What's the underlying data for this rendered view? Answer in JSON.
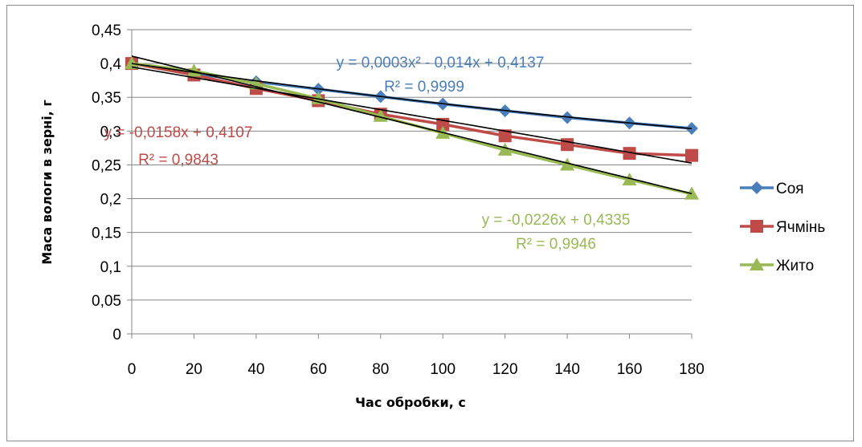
{
  "chart_data": {
    "type": "line",
    "xlabel": "Час обробки, с",
    "ylabel": "Маса вологи в зерні, г",
    "x": [
      0,
      20,
      40,
      60,
      80,
      100,
      120,
      140,
      160,
      180
    ],
    "xlim": [
      0,
      180
    ],
    "ylim": [
      0,
      0.45
    ],
    "x_ticks": [
      "0",
      "20",
      "40",
      "60",
      "80",
      "100",
      "120",
      "140",
      "160",
      "180"
    ],
    "y_ticks": [
      "0",
      "0,05",
      "0,1",
      "0,15",
      "0,2",
      "0,25",
      "0,3",
      "0,35",
      "0,4",
      "0,45"
    ],
    "grid": "horizontal",
    "legend_position": "right",
    "series": [
      {
        "name": "Соя",
        "color": "#4a7ebb",
        "marker": "diamond",
        "values": [
          0.4,
          0.385,
          0.373,
          0.362,
          0.351,
          0.34,
          0.33,
          0.32,
          0.312,
          0.304
        ],
        "trendline": {
          "kind": "polynomial",
          "coef": [
            0.0003,
            -0.014,
            0.4137
          ],
          "equation": "y = 0,0003x² - 0,014x + 0,4137",
          "r2": "R² = 0,9999",
          "color": "#4a7ebb"
        }
      },
      {
        "name": "Ячмінь",
        "color": "#be4b48",
        "marker": "square",
        "values": [
          0.4,
          0.383,
          0.363,
          0.345,
          0.325,
          0.31,
          0.293,
          0.28,
          0.267,
          0.264
        ],
        "trendline": {
          "kind": "linear",
          "coef": [
            -0.0158,
            0.4107
          ],
          "equation": "y = -0,0158x + 0,4107",
          "r2": "R² = 0,9843",
          "color": "#be4b48"
        }
      },
      {
        "name": "Жито",
        "color": "#98b954",
        "marker": "triangle",
        "values": [
          0.4,
          0.389,
          0.37,
          0.348,
          0.322,
          0.297,
          0.272,
          0.25,
          0.228,
          0.207
        ],
        "trendline": {
          "kind": "linear",
          "coef": [
            -0.0226,
            0.4335
          ],
          "equation": "y = -0,0226x + 0,4335",
          "r2": "R² = 0,9946",
          "color": "#98b954"
        }
      }
    ]
  }
}
